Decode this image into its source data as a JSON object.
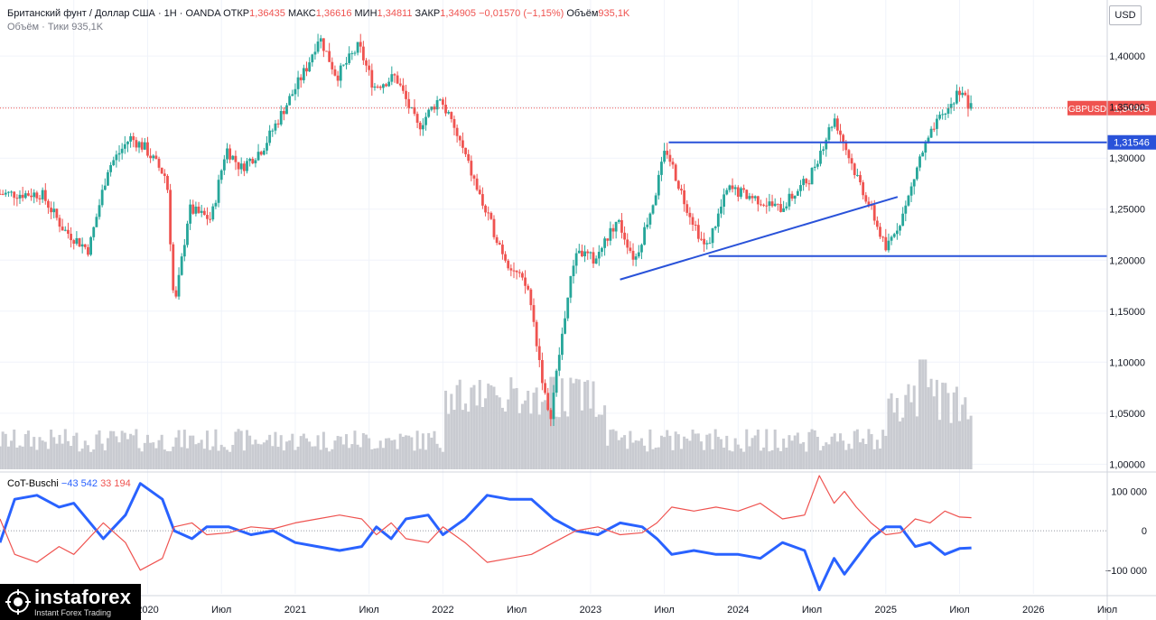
{
  "header": {
    "symbol_line": "Британский фунт / Доллар США · 1Н · OANDA",
    "open_label": "ОТКР",
    "open_value": "1,36435",
    "high_label": "МАКС",
    "high_value": "1,36616",
    "low_label": "МИН",
    "low_value": "1,34811",
    "close_label": "ЗАКР",
    "close_value": "1,34905",
    "change_value": "−0,01570 (−1,15%)",
    "volume_label": "Объём",
    "volume_value": "935,1K",
    "volume_sub_label": "Объём · Тики",
    "volume_sub_value": "935,1K"
  },
  "currency": "USD",
  "indicator": {
    "name": "CoT-Buschi",
    "value1": "−43 542",
    "value2": "33 194"
  },
  "logo": {
    "name": "instaforex",
    "tagline": "Instant Forex Trading"
  },
  "colors": {
    "up": "#26a69a",
    "down": "#ef5350",
    "volume": "#c9cbd1",
    "blue_line": "#2962ff",
    "support_line": "#2952d9",
    "price_line": "#ef5350"
  },
  "chart_data": [
    {
      "type": "candlestick",
      "title": "Британский фунт / Доллар США",
      "price_axis": {
        "ticks": [
          "1,40000",
          "1,35000",
          "1,30000",
          "1,25000",
          "1,20000",
          "1,15000",
          "1,10000",
          "1,05000",
          "1,00000"
        ],
        "ylim": [
          0.995,
          1.455
        ]
      },
      "time_axis": {
        "labels": [
          "Июл",
          "2020",
          "Июл",
          "2021",
          "Июл",
          "2022",
          "Июл",
          "2023",
          "Июл",
          "2024",
          "Июл",
          "2025",
          "Июл",
          "2026",
          "Июл"
        ]
      },
      "price_path": [
        [
          2019.3,
          1.265
        ],
        [
          2019.45,
          1.23
        ],
        [
          2019.62,
          1.21
        ],
        [
          2019.75,
          1.29
        ],
        [
          2019.9,
          1.32
        ],
        [
          2020.0,
          1.31
        ],
        [
          2020.15,
          1.28
        ],
        [
          2020.2,
          1.15
        ],
        [
          2020.3,
          1.25
        ],
        [
          2020.45,
          1.24
        ],
        [
          2020.55,
          1.31
        ],
        [
          2020.65,
          1.29
        ],
        [
          2020.8,
          1.31
        ],
        [
          2020.95,
          1.35
        ],
        [
          2021.1,
          1.39
        ],
        [
          2021.18,
          1.42
        ],
        [
          2021.3,
          1.38
        ],
        [
          2021.45,
          1.41
        ],
        [
          2021.55,
          1.37
        ],
        [
          2021.7,
          1.38
        ],
        [
          2021.85,
          1.33
        ],
        [
          2022.0,
          1.36
        ],
        [
          2022.15,
          1.31
        ],
        [
          2022.3,
          1.25
        ],
        [
          2022.45,
          1.2
        ],
        [
          2022.6,
          1.17
        ],
        [
          2022.74,
          1.04
        ],
        [
          2022.85,
          1.15
        ],
        [
          2022.92,
          1.21
        ],
        [
          2023.05,
          1.2
        ],
        [
          2023.2,
          1.24
        ],
        [
          2023.32,
          1.2
        ],
        [
          2023.45,
          1.26
        ],
        [
          2023.53,
          1.31
        ],
        [
          2023.65,
          1.26
        ],
        [
          2023.8,
          1.21
        ],
        [
          2023.95,
          1.27
        ],
        [
          2024.15,
          1.26
        ],
        [
          2024.3,
          1.25
        ],
        [
          2024.5,
          1.28
        ],
        [
          2024.67,
          1.34
        ],
        [
          2024.8,
          1.29
        ],
        [
          2024.92,
          1.25
        ],
        [
          2025.02,
          1.21
        ],
        [
          2025.15,
          1.25
        ],
        [
          2025.25,
          1.3
        ],
        [
          2025.35,
          1.33
        ],
        [
          2025.45,
          1.35
        ],
        [
          2025.53,
          1.37
        ],
        [
          2025.58,
          1.349
        ]
      ],
      "current_price": {
        "label": "GBPUSD",
        "value": 1.34905,
        "text": "1,34905"
      },
      "horizontal_levels": [
        {
          "value": 1.31546,
          "text": "1,31546",
          "from": 2023.53
        },
        {
          "value": 1.204,
          "from": 2023.8
        }
      ],
      "trendline": {
        "from": [
          2023.2,
          1.181
        ],
        "to": [
          2025.08,
          1.262
        ]
      },
      "volume_range": [
        0,
        130
      ]
    },
    {
      "type": "line",
      "title": "CoT-Buschi",
      "y_ticks": [
        "100 000",
        "0",
        "−100 000"
      ],
      "ylim": [
        -160000,
        140000
      ],
      "series": [
        {
          "name": "",
          "color": "#2962ff",
          "values": [
            [
              2019.0,
              -30000
            ],
            [
              2019.1,
              80000
            ],
            [
              2019.25,
              90000
            ],
            [
              2019.4,
              60000
            ],
            [
              2019.5,
              70000
            ],
            [
              2019.7,
              -20000
            ],
            [
              2019.85,
              40000
            ],
            [
              2019.95,
              120000
            ],
            [
              2020.1,
              80000
            ],
            [
              2020.18,
              0
            ],
            [
              2020.3,
              -20000
            ],
            [
              2020.4,
              10000
            ],
            [
              2020.55,
              10000
            ],
            [
              2020.7,
              -10000
            ],
            [
              2020.85,
              0
            ],
            [
              2021.0,
              -30000
            ],
            [
              2021.15,
              -40000
            ],
            [
              2021.3,
              -50000
            ],
            [
              2021.45,
              -40000
            ],
            [
              2021.55,
              10000
            ],
            [
              2021.65,
              -20000
            ],
            [
              2021.75,
              30000
            ],
            [
              2021.9,
              40000
            ],
            [
              2022.0,
              -10000
            ],
            [
              2022.15,
              30000
            ],
            [
              2022.3,
              90000
            ],
            [
              2022.45,
              80000
            ],
            [
              2022.6,
              80000
            ],
            [
              2022.75,
              30000
            ],
            [
              2022.9,
              0
            ],
            [
              2023.05,
              -10000
            ],
            [
              2023.2,
              20000
            ],
            [
              2023.35,
              10000
            ],
            [
              2023.45,
              -20000
            ],
            [
              2023.55,
              -60000
            ],
            [
              2023.7,
              -50000
            ],
            [
              2023.85,
              -60000
            ],
            [
              2024.0,
              -60000
            ],
            [
              2024.15,
              -70000
            ],
            [
              2024.3,
              -30000
            ],
            [
              2024.45,
              -50000
            ],
            [
              2024.55,
              -150000
            ],
            [
              2024.65,
              -70000
            ],
            [
              2024.72,
              -110000
            ],
            [
              2024.8,
              -70000
            ],
            [
              2024.9,
              -20000
            ],
            [
              2025.0,
              10000
            ],
            [
              2025.1,
              10000
            ],
            [
              2025.2,
              -40000
            ],
            [
              2025.3,
              -30000
            ],
            [
              2025.4,
              -60000
            ],
            [
              2025.5,
              -45000
            ],
            [
              2025.58,
              -43542
            ]
          ]
        },
        {
          "name": "",
          "color": "#ef5350",
          "values": [
            [
              2019.0,
              30000
            ],
            [
              2019.1,
              -60000
            ],
            [
              2019.25,
              -80000
            ],
            [
              2019.4,
              -40000
            ],
            [
              2019.5,
              -60000
            ],
            [
              2019.7,
              20000
            ],
            [
              2019.85,
              -30000
            ],
            [
              2019.95,
              -100000
            ],
            [
              2020.1,
              -70000
            ],
            [
              2020.18,
              10000
            ],
            [
              2020.3,
              20000
            ],
            [
              2020.4,
              -10000
            ],
            [
              2020.55,
              -5000
            ],
            [
              2020.7,
              10000
            ],
            [
              2020.85,
              5000
            ],
            [
              2021.0,
              20000
            ],
            [
              2021.15,
              30000
            ],
            [
              2021.3,
              40000
            ],
            [
              2021.45,
              30000
            ],
            [
              2021.55,
              -10000
            ],
            [
              2021.65,
              20000
            ],
            [
              2021.75,
              -20000
            ],
            [
              2021.9,
              -30000
            ],
            [
              2022.0,
              10000
            ],
            [
              2022.15,
              -30000
            ],
            [
              2022.3,
              -80000
            ],
            [
              2022.45,
              -70000
            ],
            [
              2022.6,
              -60000
            ],
            [
              2022.75,
              -30000
            ],
            [
              2022.9,
              0
            ],
            [
              2023.05,
              10000
            ],
            [
              2023.2,
              -10000
            ],
            [
              2023.35,
              -5000
            ],
            [
              2023.45,
              20000
            ],
            [
              2023.55,
              60000
            ],
            [
              2023.7,
              50000
            ],
            [
              2023.85,
              60000
            ],
            [
              2024.0,
              50000
            ],
            [
              2024.15,
              70000
            ],
            [
              2024.3,
              30000
            ],
            [
              2024.45,
              40000
            ],
            [
              2024.55,
              140000
            ],
            [
              2024.65,
              70000
            ],
            [
              2024.72,
              100000
            ],
            [
              2024.8,
              60000
            ],
            [
              2024.9,
              20000
            ],
            [
              2025.0,
              -10000
            ],
            [
              2025.1,
              -5000
            ],
            [
              2025.2,
              30000
            ],
            [
              2025.3,
              20000
            ],
            [
              2025.4,
              50000
            ],
            [
              2025.5,
              35000
            ],
            [
              2025.58,
              33194
            ]
          ]
        }
      ]
    }
  ]
}
